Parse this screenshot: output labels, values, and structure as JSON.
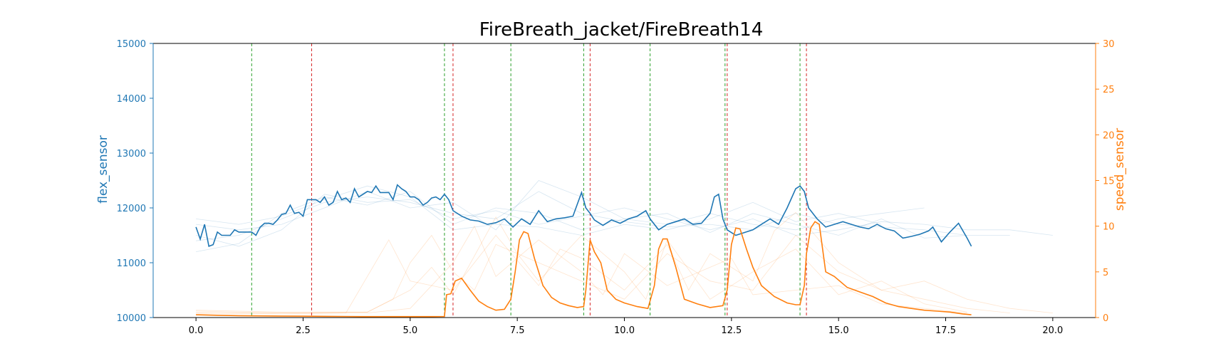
{
  "colors": {
    "flex": "#1f77b4",
    "speed": "#ff7f0e",
    "green_marker": "#2ca02c",
    "red_marker": "#d62728",
    "axis": "#000000"
  },
  "chart_data": {
    "type": "line",
    "title": "FireBreath_jacket/FireBreath14",
    "xlabel": "",
    "ylabel_left": "flex_sensor",
    "ylabel_right": "speed_sensor",
    "xlim": [
      -1.0,
      21.0
    ],
    "ylim_left": [
      10000,
      15000
    ],
    "ylim_right": [
      0,
      30
    ],
    "xticks": [
      0.0,
      2.5,
      5.0,
      7.5,
      10.0,
      12.5,
      15.0,
      17.5,
      20.0
    ],
    "xtick_labels": [
      "0.0",
      "2.5",
      "5.0",
      "7.5",
      "10.0",
      "12.5",
      "15.0",
      "17.5",
      "20.0"
    ],
    "yticks_left": [
      10000,
      11000,
      12000,
      13000,
      14000,
      15000
    ],
    "ytick_labels_left": [
      "10000",
      "11000",
      "12000",
      "13000",
      "14000",
      "15000"
    ],
    "yticks_right": [
      0,
      5,
      10,
      15,
      20,
      25,
      30
    ],
    "ytick_labels_right": [
      "0",
      "5",
      "10",
      "15",
      "20",
      "25",
      "30"
    ],
    "grid": false,
    "green_vlines": [
      1.3,
      5.8,
      7.35,
      9.05,
      10.6,
      12.35,
      14.1
    ],
    "red_vlines": [
      2.7,
      6.0,
      9.2,
      12.4,
      14.25
    ],
    "flex_main": {
      "axis": "left",
      "x": [
        0.0,
        0.1,
        0.2,
        0.3,
        0.4,
        0.5,
        0.6,
        0.7,
        0.8,
        0.9,
        1.0,
        1.1,
        1.2,
        1.3,
        1.4,
        1.5,
        1.6,
        1.7,
        1.8,
        1.9,
        2.0,
        2.1,
        2.2,
        2.3,
        2.4,
        2.5,
        2.6,
        2.7,
        2.8,
        2.9,
        3.0,
        3.1,
        3.2,
        3.3,
        3.4,
        3.5,
        3.6,
        3.7,
        3.8,
        3.9,
        4.0,
        4.1,
        4.2,
        4.3,
        4.4,
        4.5,
        4.6,
        4.7,
        4.8,
        4.9,
        5.0,
        5.1,
        5.2,
        5.3,
        5.4,
        5.5,
        5.6,
        5.7,
        5.8,
        5.9,
        6.0,
        6.2,
        6.4,
        6.6,
        6.8,
        7.0,
        7.2,
        7.4,
        7.6,
        7.8,
        8.0,
        8.2,
        8.4,
        8.6,
        8.8,
        9.0,
        9.1,
        9.2,
        9.3,
        9.5,
        9.7,
        9.9,
        10.1,
        10.3,
        10.5,
        10.6,
        10.8,
        11.0,
        11.2,
        11.4,
        11.6,
        11.8,
        12.0,
        12.1,
        12.2,
        12.3,
        12.4,
        12.6,
        12.8,
        13.0,
        13.2,
        13.4,
        13.6,
        13.8,
        14.0,
        14.1,
        14.2,
        14.3,
        14.5,
        14.7,
        14.9,
        15.1,
        15.3,
        15.5,
        15.7,
        15.9,
        16.1,
        16.3,
        16.5,
        16.7,
        16.9,
        17.1,
        17.2,
        17.4,
        17.6,
        17.8,
        18.0,
        18.1
      ],
      "y": [
        11650,
        11430,
        11700,
        11300,
        11330,
        11560,
        11500,
        11500,
        11500,
        11600,
        11560,
        11560,
        11560,
        11560,
        11500,
        11650,
        11720,
        11720,
        11700,
        11780,
        11880,
        11900,
        12050,
        11900,
        11920,
        11850,
        12150,
        12150,
        12150,
        12100,
        12200,
        12050,
        12100,
        12300,
        12150,
        12180,
        12100,
        12350,
        12200,
        12250,
        12300,
        12280,
        12400,
        12280,
        12280,
        12280,
        12150,
        12420,
        12350,
        12300,
        12200,
        12200,
        12150,
        12050,
        12100,
        12180,
        12200,
        12150,
        12250,
        12150,
        11950,
        11850,
        11780,
        11760,
        11700,
        11730,
        11800,
        11650,
        11800,
        11700,
        11950,
        11750,
        11800,
        11820,
        11850,
        12280,
        12000,
        11900,
        11780,
        11680,
        11780,
        11720,
        11800,
        11850,
        11950,
        11800,
        11600,
        11700,
        11750,
        11800,
        11700,
        11720,
        11900,
        12200,
        12250,
        11800,
        11600,
        11500,
        11550,
        11600,
        11700,
        11800,
        11700,
        12000,
        12350,
        12400,
        12300,
        12000,
        11800,
        11650,
        11700,
        11750,
        11700,
        11650,
        11620,
        11700,
        11620,
        11580,
        11450,
        11480,
        11520,
        11580,
        11650,
        11380,
        11560,
        11720,
        11450,
        11300
      ],
      "x_dense_note": ""
    },
    "speed_main": {
      "axis": "right",
      "x": [
        0.0,
        0.5,
        1.0,
        1.5,
        2.0,
        2.5,
        3.0,
        3.5,
        4.0,
        4.5,
        5.0,
        5.5,
        5.8,
        5.85,
        5.95,
        6.05,
        6.2,
        6.4,
        6.6,
        6.8,
        7.0,
        7.2,
        7.35,
        7.45,
        7.55,
        7.65,
        7.75,
        7.9,
        8.1,
        8.3,
        8.5,
        8.7,
        8.9,
        9.05,
        9.1,
        9.2,
        9.3,
        9.45,
        9.6,
        9.8,
        10.0,
        10.3,
        10.55,
        10.7,
        10.8,
        10.9,
        11.0,
        11.2,
        11.4,
        11.7,
        12.0,
        12.3,
        12.4,
        12.5,
        12.6,
        12.7,
        12.85,
        13.0,
        13.2,
        13.5,
        13.8,
        14.0,
        14.1,
        14.2,
        14.25,
        14.35,
        14.45,
        14.55,
        14.7,
        14.9,
        15.2,
        15.5,
        15.8,
        16.1,
        16.4,
        16.7,
        17.0,
        17.3,
        17.6,
        17.9,
        18.1
      ],
      "y": [
        0.3,
        0.25,
        0.2,
        0.18,
        0.16,
        0.15,
        0.13,
        0.12,
        0.1,
        0.1,
        0.1,
        0.1,
        0.12,
        2.5,
        2.6,
        4.0,
        4.3,
        3.0,
        1.8,
        1.2,
        0.8,
        0.9,
        2.0,
        5.0,
        8.5,
        9.4,
        9.2,
        6.5,
        3.5,
        2.2,
        1.6,
        1.3,
        1.1,
        1.2,
        3.0,
        8.5,
        7.2,
        6.0,
        3.0,
        2.0,
        1.6,
        1.2,
        1.0,
        3.5,
        7.5,
        8.6,
        8.6,
        5.5,
        2.0,
        1.5,
        1.1,
        1.3,
        3.0,
        8.0,
        9.8,
        9.7,
        7.5,
        5.5,
        3.5,
        2.3,
        1.6,
        1.4,
        1.4,
        3.5,
        7.0,
        9.8,
        10.5,
        10.2,
        5.0,
        4.5,
        3.3,
        2.8,
        2.3,
        1.6,
        1.2,
        1.0,
        0.8,
        0.7,
        0.6,
        0.4,
        0.3
      ]
    },
    "background_series_note": "many faint thin flex_sensor and speed_sensor traces behind the highlighted series",
    "flex_background": [
      {
        "x": [
          0.0,
          1.0,
          2.0,
          3.0,
          4.0,
          5.0,
          6.0,
          7.0,
          8.0,
          9.0,
          10.0,
          11.0,
          12.0,
          13.0,
          14.0,
          15.0,
          16.0,
          17.0,
          18.0,
          19.0
        ],
        "y": [
          11400,
          11500,
          11800,
          12100,
          12200,
          12100,
          11900,
          11800,
          12300,
          11900,
          11750,
          11650,
          11700,
          11600,
          11900,
          11700,
          11650,
          11600,
          11500,
          11500
        ]
      },
      {
        "x": [
          0.0,
          1.0,
          2.0,
          3.0,
          4.0,
          5.0,
          6.0,
          7.0,
          8.0,
          9.0,
          10.0,
          11.0,
          12.0,
          13.0,
          14.0,
          15.0,
          16.0,
          17.0,
          18.0
        ],
        "y": [
          11200,
          11350,
          11900,
          12200,
          12050,
          12300,
          11700,
          12000,
          11900,
          11600,
          11800,
          11900,
          11550,
          11900,
          11700,
          11500,
          11800,
          11450,
          11500
        ]
      },
      {
        "x": [
          0.0,
          1.0,
          2.0,
          3.0,
          4.0,
          5.0,
          6.0,
          7.0,
          8.0,
          9.0,
          10.0,
          11.0,
          12.0,
          13.0,
          14.0,
          15.0,
          16.0,
          17.0
        ],
        "y": [
          11700,
          11600,
          11700,
          12000,
          12300,
          12000,
          12100,
          11600,
          12500,
          12200,
          11800,
          11700,
          11900,
          11700,
          11600,
          11800,
          11900,
          12000
        ]
      },
      {
        "x": [
          0.0,
          1.0,
          2.0,
          3.0,
          4.0,
          5.0,
          6.0,
          7.0,
          8.0,
          9.0,
          10.0,
          11.0,
          12.0,
          13.0,
          14.0,
          15.0,
          16.0,
          17.0,
          18.0,
          19.0,
          20.0
        ],
        "y": [
          11500,
          11300,
          11600,
          12250,
          12100,
          12150,
          11800,
          11950,
          11700,
          11850,
          12000,
          11800,
          11600,
          11800,
          11500,
          11600,
          11750,
          11700,
          11600,
          11600,
          11500
        ]
      },
      {
        "x": [
          0.0,
          1.0,
          2.0,
          3.0,
          4.0,
          5.0,
          6.0,
          7.0,
          8.0,
          9.0,
          10.0,
          11.0,
          12.0,
          13.0,
          14.0,
          15.0,
          16.0
        ],
        "y": [
          11800,
          11700,
          11850,
          12150,
          12400,
          12200,
          11600,
          11700,
          11650,
          11500,
          11700,
          11600,
          11800,
          12100,
          11750,
          11900,
          11700
        ]
      }
    ],
    "speed_background": [
      {
        "x": [
          0.0,
          2.0,
          4.0,
          4.6,
          5.0,
          5.5,
          6.0,
          6.5,
          7.0,
          8.0,
          9.0,
          10.0,
          11.0,
          12.0,
          13.0,
          14.0,
          15.0,
          16.0,
          17.0,
          18.0,
          19.0,
          20.0
        ],
        "y": [
          0.5,
          0.5,
          0.6,
          2.0,
          6.0,
          9.0,
          5.0,
          3.0,
          8.0,
          6.0,
          4.0,
          2.0,
          7.0,
          4.0,
          3.0,
          9.0,
          5.0,
          3.0,
          4.0,
          2.0,
          1.0,
          0.5
        ]
      },
      {
        "x": [
          0.0,
          2.0,
          4.0,
          5.0,
          5.5,
          6.0,
          7.0,
          7.5,
          8.0,
          9.0,
          10.0,
          10.5,
          11.0,
          12.0,
          13.0,
          14.0,
          15.0,
          16.0,
          17.0,
          18.0
        ],
        "y": [
          0.8,
          0.6,
          0.6,
          3.0,
          5.5,
          2.5,
          11.0,
          7.0,
          4.0,
          9.0,
          5.0,
          2.0,
          8.5,
          2.0,
          5.0,
          7.5,
          2.5,
          4.0,
          1.5,
          0.6
        ]
      },
      {
        "x": [
          0.0,
          2.0,
          3.5,
          4.5,
          5.0,
          6.0,
          6.5,
          7.0,
          8.0,
          8.5,
          9.0,
          10.0,
          11.0,
          11.5,
          12.0,
          13.0,
          13.5,
          14.0,
          15.0,
          16.0,
          17.0,
          18.0,
          19.0
        ],
        "y": [
          0.5,
          0.4,
          0.5,
          8.5,
          4.0,
          3.0,
          6.0,
          9.0,
          3.5,
          7.5,
          6.5,
          3.0,
          8.0,
          3.0,
          7.0,
          4.0,
          9.5,
          11.5,
          6.0,
          3.0,
          2.0,
          1.0,
          0.5
        ]
      },
      {
        "x": [
          0.0,
          2.0,
          4.0,
          5.0,
          6.0,
          6.5,
          7.0,
          8.0,
          9.0,
          9.5,
          10.0,
          11.0,
          12.0,
          12.5,
          13.0,
          14.0,
          15.0,
          16.0,
          17.0,
          18.0
        ],
        "y": [
          0.7,
          0.5,
          0.5,
          1.0,
          6.0,
          10.0,
          4.5,
          8.5,
          5.0,
          2.5,
          7.0,
          3.5,
          5.5,
          6.5,
          2.5,
          3.0,
          3.5,
          1.5,
          1.0,
          0.5
        ]
      }
    ]
  }
}
